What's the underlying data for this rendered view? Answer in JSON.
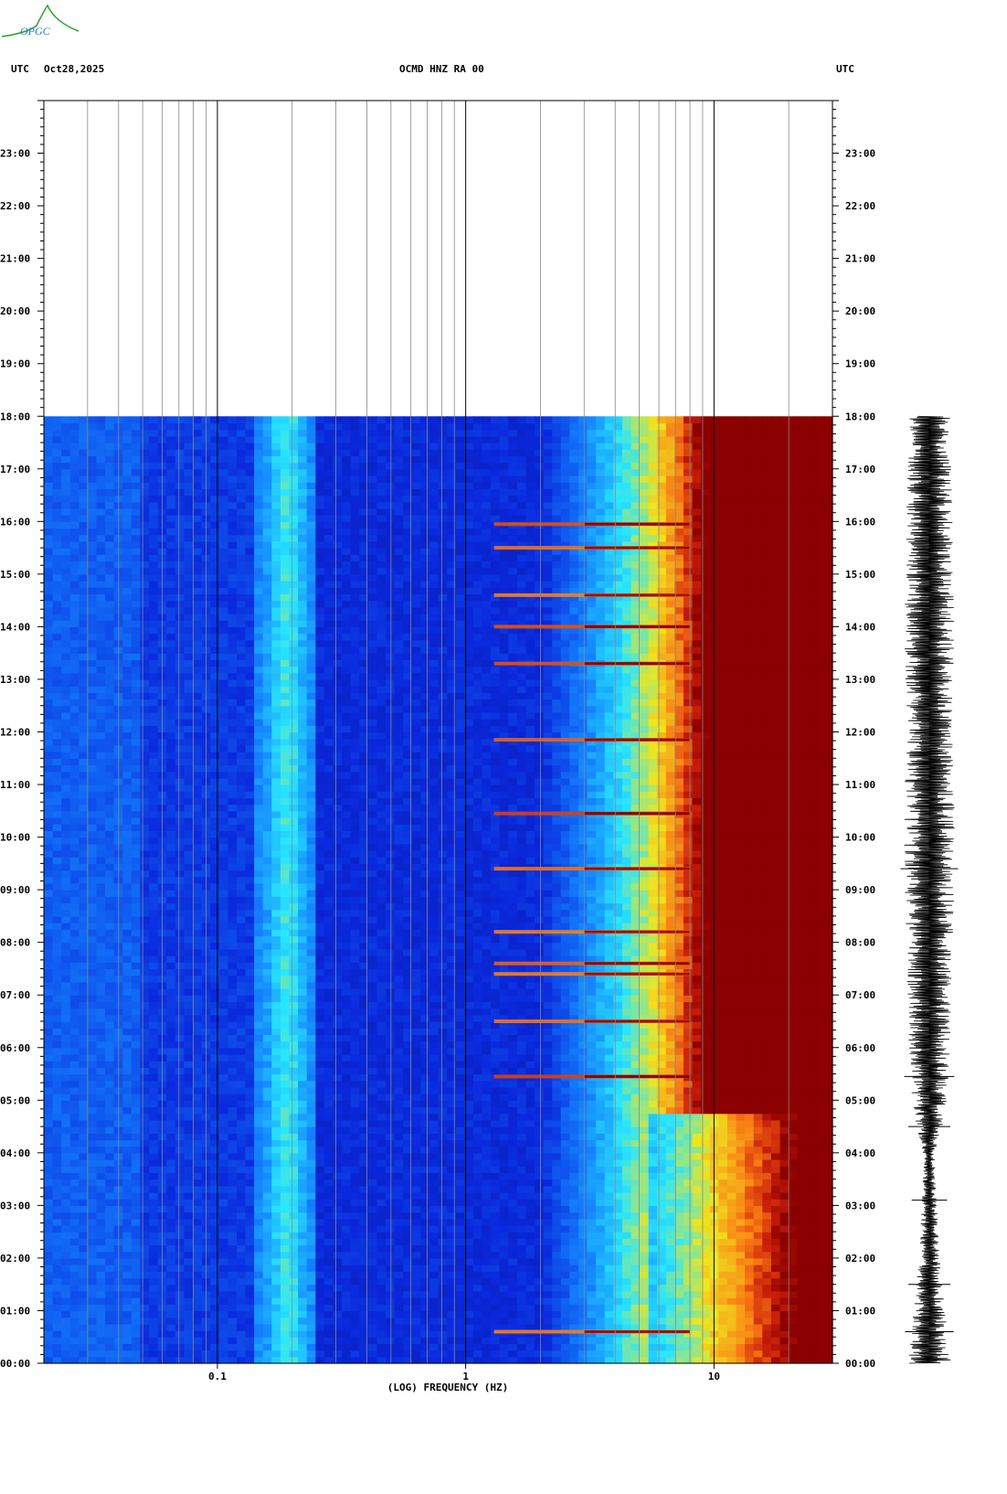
{
  "header": {
    "left_tz": "UTC",
    "date": "Oct28,2025",
    "channel": "OCMD HNZ RA 00",
    "right_tz": "UTC"
  },
  "logo_text": "OPGC",
  "colors": {
    "low": "#0a2adf",
    "mid": "#25d2ff",
    "high": "#f2e31a",
    "saturated": "#8b0000",
    "background": "#ffffff"
  },
  "chart_data": {
    "type": "heatmap",
    "title": "OCMD HNZ RA 00",
    "xlabel": "(LOG) FREQUENCY (HZ)",
    "x_scale": "log",
    "xlim": [
      0.02,
      30
    ],
    "x_ticks": [
      {
        "value": 0.1,
        "label": "0.1"
      },
      {
        "value": 1,
        "label": "1"
      },
      {
        "value": 10,
        "label": "10"
      }
    ],
    "ylabel_left": "UTC",
    "ylabel_right": "UTC",
    "ylim_hours": [
      0,
      24
    ],
    "y_ticks": [
      "00:00",
      "01:00",
      "02:00",
      "03:00",
      "04:00",
      "05:00",
      "06:00",
      "07:00",
      "08:00",
      "09:00",
      "10:00",
      "11:00",
      "12:00",
      "13:00",
      "14:00",
      "15:00",
      "16:00",
      "17:00",
      "18:00",
      "19:00",
      "20:00",
      "21:00",
      "22:00",
      "23:00"
    ],
    "data_end_hour": 18.0,
    "noise_bands": [
      {
        "hour": 0.6,
        "level": 0.8
      },
      {
        "hour": 5.45,
        "level": 1.0
      },
      {
        "hour": 6.5,
        "level": 0.85
      },
      {
        "hour": 7.4,
        "level": 0.8
      },
      {
        "hour": 7.6,
        "level": 0.9
      },
      {
        "hour": 8.2,
        "level": 0.8
      },
      {
        "hour": 9.4,
        "level": 0.85
      },
      {
        "hour": 10.45,
        "level": 1.0
      },
      {
        "hour": 11.85,
        "level": 0.9
      },
      {
        "hour": 13.3,
        "level": 0.95
      },
      {
        "hour": 14.0,
        "level": 0.95
      },
      {
        "hour": 14.6,
        "level": 0.8
      },
      {
        "hour": 15.5,
        "level": 0.85
      },
      {
        "hour": 15.95,
        "level": 0.95
      }
    ],
    "waveform_activity": [
      {
        "hour": 0.6,
        "level": 0.7
      },
      {
        "hour": 1.5,
        "level": 0.5
      },
      {
        "hour": 2.0,
        "level": 0.4
      },
      {
        "hour": 3.1,
        "level": 0.3
      },
      {
        "hour": 3.9,
        "level": 0.2
      },
      {
        "hour": 4.5,
        "level": 0.5
      },
      {
        "hour": 5.0,
        "level": 0.7
      },
      {
        "hour": 6.0,
        "level": 0.8
      },
      {
        "hour": 8.0,
        "level": 0.9
      },
      {
        "hour": 10.0,
        "level": 1.0
      },
      {
        "hour": 12.0,
        "level": 0.9
      },
      {
        "hour": 14.0,
        "level": 0.95
      },
      {
        "hour": 16.0,
        "level": 0.9
      },
      {
        "hour": 18.0,
        "level": 0.8
      }
    ]
  }
}
